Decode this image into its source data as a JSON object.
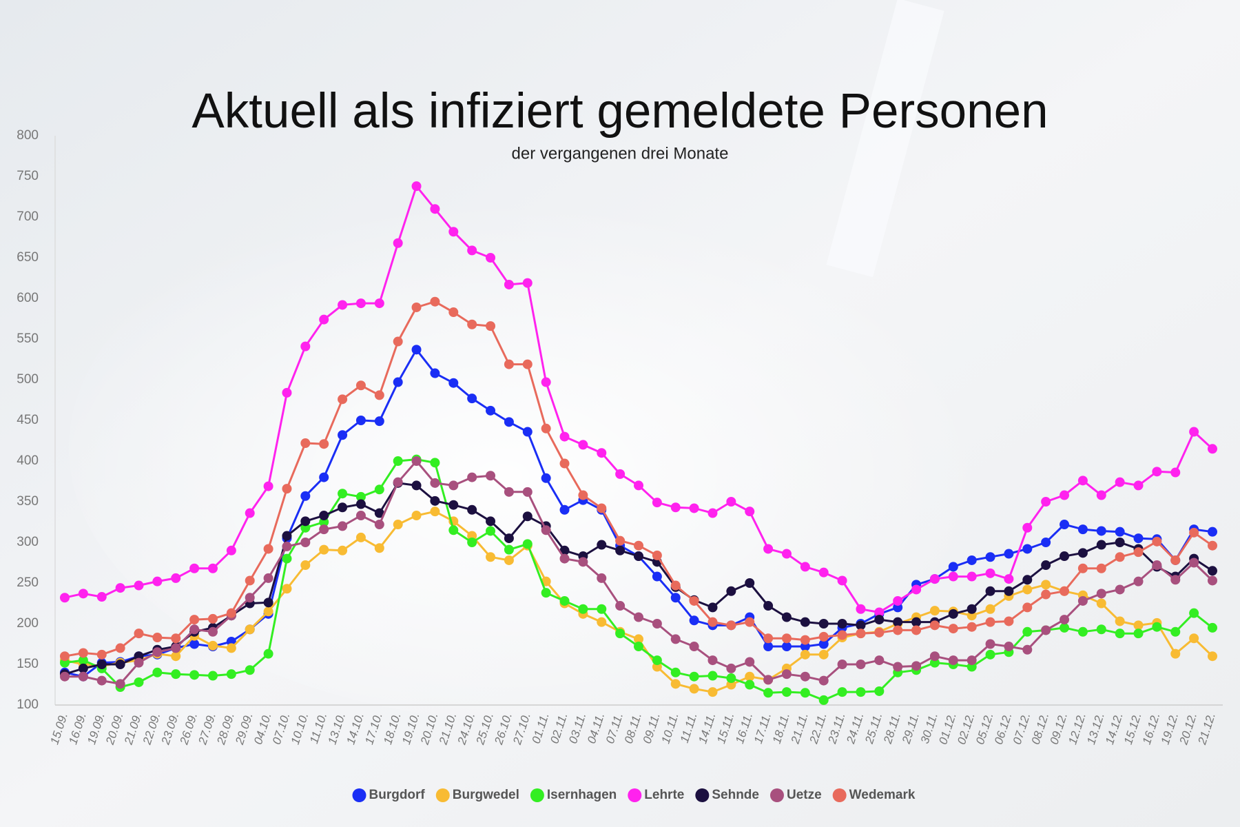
{
  "chart_data": {
    "type": "line",
    "title": "Aktuell als infiziert gemeldete Personen",
    "subtitle": "der vergangenen drei Monate",
    "categories": [
      "15.09.",
      "16.09.",
      "19.09.",
      "20.09.",
      "21.09.",
      "22.09.",
      "23.09.",
      "26.09.",
      "27.09.",
      "28.09.",
      "29.09.",
      "04.10.",
      "07.10.",
      "10.10.",
      "11.10.",
      "13.10.",
      "14.10.",
      "17.10.",
      "18.10.",
      "19.10.",
      "20.10.",
      "21.10.",
      "24.10.",
      "25.10.",
      "26.10.",
      "27.10.",
      "01.11.",
      "02.11.",
      "03.11.",
      "04.11.",
      "07.11.",
      "08.11.",
      "09.11.",
      "10.11.",
      "11.11.",
      "14.11.",
      "15.11.",
      "16.11.",
      "17.11.",
      "18.11.",
      "21.11.",
      "22.11.",
      "23.11.",
      "24.11.",
      "25.11.",
      "28.11.",
      "29.11.",
      "30.11.",
      "01.12.",
      "02.12.",
      "05.12.",
      "06.12.",
      "07.12.",
      "08.12.",
      "09.12.",
      "12.12.",
      "13.12.",
      "14.12.",
      "15.12.",
      "16.12.",
      "19.12.",
      "20.12.",
      "21.12."
    ],
    "series": [
      {
        "name": "Burgdorf",
        "color": "#1a2ef5",
        "values": [
          140,
          135,
          152,
          153,
          160,
          162,
          170,
          175,
          172,
          178,
          193,
          212,
          305,
          357,
          380,
          432,
          450,
          449,
          497,
          537,
          508,
          496,
          477,
          462,
          448,
          436,
          379,
          340,
          352,
          340,
          296,
          283,
          258,
          232,
          204,
          198,
          198,
          208,
          172,
          172,
          172,
          175,
          195,
          200,
          212,
          220,
          248,
          255,
          270,
          278,
          282,
          286,
          292,
          300,
          322,
          316,
          314,
          313,
          305,
          304,
          278,
          316,
          313
        ]
      },
      {
        "name": "Burgwedel",
        "color": "#f8bb33",
        "values": [
          155,
          150,
          148,
          152,
          155,
          163,
          160,
          185,
          173,
          170,
          193,
          215,
          243,
          272,
          291,
          290,
          306,
          293,
          322,
          333,
          338,
          326,
          308,
          282,
          278,
          296,
          252,
          225,
          212,
          202,
          190,
          181,
          147,
          126,
          120,
          116,
          125,
          135,
          131,
          145,
          162,
          162,
          183,
          188,
          190,
          200,
          208,
          216,
          215,
          210,
          218,
          234,
          242,
          248,
          240,
          235,
          225,
          203,
          198,
          201,
          163,
          182,
          160
        ]
      },
      {
        "name": "Isernhagen",
        "color": "#33ee22",
        "values": [
          152,
          155,
          145,
          122,
          128,
          140,
          138,
          137,
          136,
          138,
          143,
          163,
          280,
          318,
          325,
          360,
          356,
          365,
          400,
          402,
          398,
          315,
          300,
          314,
          291,
          298,
          238,
          228,
          218,
          218,
          188,
          172,
          155,
          140,
          135,
          136,
          133,
          125,
          115,
          116,
          115,
          106,
          116,
          116,
          117,
          140,
          143,
          152,
          150,
          147,
          162,
          165,
          190,
          192,
          195,
          190,
          193,
          188,
          188,
          196,
          190,
          213,
          195
        ]
      },
      {
        "name": "Lehrte",
        "color": "#ff22ee",
        "values": [
          232,
          237,
          233,
          244,
          247,
          252,
          256,
          268,
          268,
          290,
          336,
          369,
          484,
          541,
          574,
          592,
          594,
          594,
          668,
          738,
          710,
          682,
          659,
          650,
          617,
          619,
          497,
          430,
          420,
          410,
          384,
          370,
          349,
          343,
          342,
          336,
          350,
          338,
          292,
          286,
          270,
          263,
          253,
          218,
          214,
          228,
          242,
          255,
          258,
          258,
          262,
          255,
          318,
          350,
          358,
          376,
          358,
          374,
          370,
          387,
          386,
          436,
          415
        ]
      },
      {
        "name": "Sehnde",
        "color": "#1c1040",
        "values": [
          138,
          145,
          150,
          150,
          160,
          168,
          172,
          190,
          195,
          210,
          225,
          226,
          308,
          326,
          333,
          343,
          347,
          336,
          373,
          370,
          351,
          346,
          340,
          326,
          305,
          332,
          320,
          290,
          283,
          297,
          290,
          283,
          276,
          245,
          229,
          220,
          240,
          250,
          222,
          208,
          202,
          200,
          200,
          198,
          205,
          202,
          202,
          202,
          212,
          218,
          240,
          240,
          254,
          272,
          283,
          287,
          297,
          300,
          292,
          270,
          258,
          280,
          265
        ]
      },
      {
        "name": "Uetze",
        "color": "#a8507e",
        "values": [
          135,
          135,
          130,
          126,
          152,
          165,
          170,
          193,
          190,
          210,
          232,
          256,
          295,
          300,
          316,
          320,
          333,
          322,
          374,
          400,
          373,
          370,
          380,
          382,
          362,
          362,
          315,
          280,
          276,
          256,
          222,
          208,
          200,
          181,
          172,
          155,
          145,
          153,
          131,
          138,
          135,
          130,
          150,
          150,
          155,
          147,
          148,
          160,
          155,
          155,
          175,
          172,
          168,
          192,
          205,
          228,
          237,
          242,
          252,
          272,
          254,
          275,
          253
        ]
      },
      {
        "name": "Wedemark",
        "color": "#e86a5c",
        "values": [
          160,
          164,
          162,
          170,
          188,
          183,
          182,
          205,
          206,
          213,
          253,
          292,
          366,
          422,
          421,
          476,
          493,
          481,
          547,
          589,
          596,
          583,
          568,
          566,
          519,
          519,
          440,
          397,
          358,
          342,
          302,
          296,
          284,
          247,
          228,
          202,
          198,
          202,
          182,
          182,
          180,
          184,
          186,
          188,
          189,
          192,
          192,
          198,
          194,
          196,
          202,
          203,
          220,
          236,
          240,
          268,
          268,
          282,
          288,
          301,
          278,
          312,
          296
        ]
      }
    ],
    "ylim": [
      100,
      800
    ],
    "yticks": [
      100,
      150,
      200,
      250,
      300,
      350,
      400,
      450,
      500,
      550,
      600,
      650,
      700,
      750,
      800
    ],
    "legend": "bottom"
  }
}
